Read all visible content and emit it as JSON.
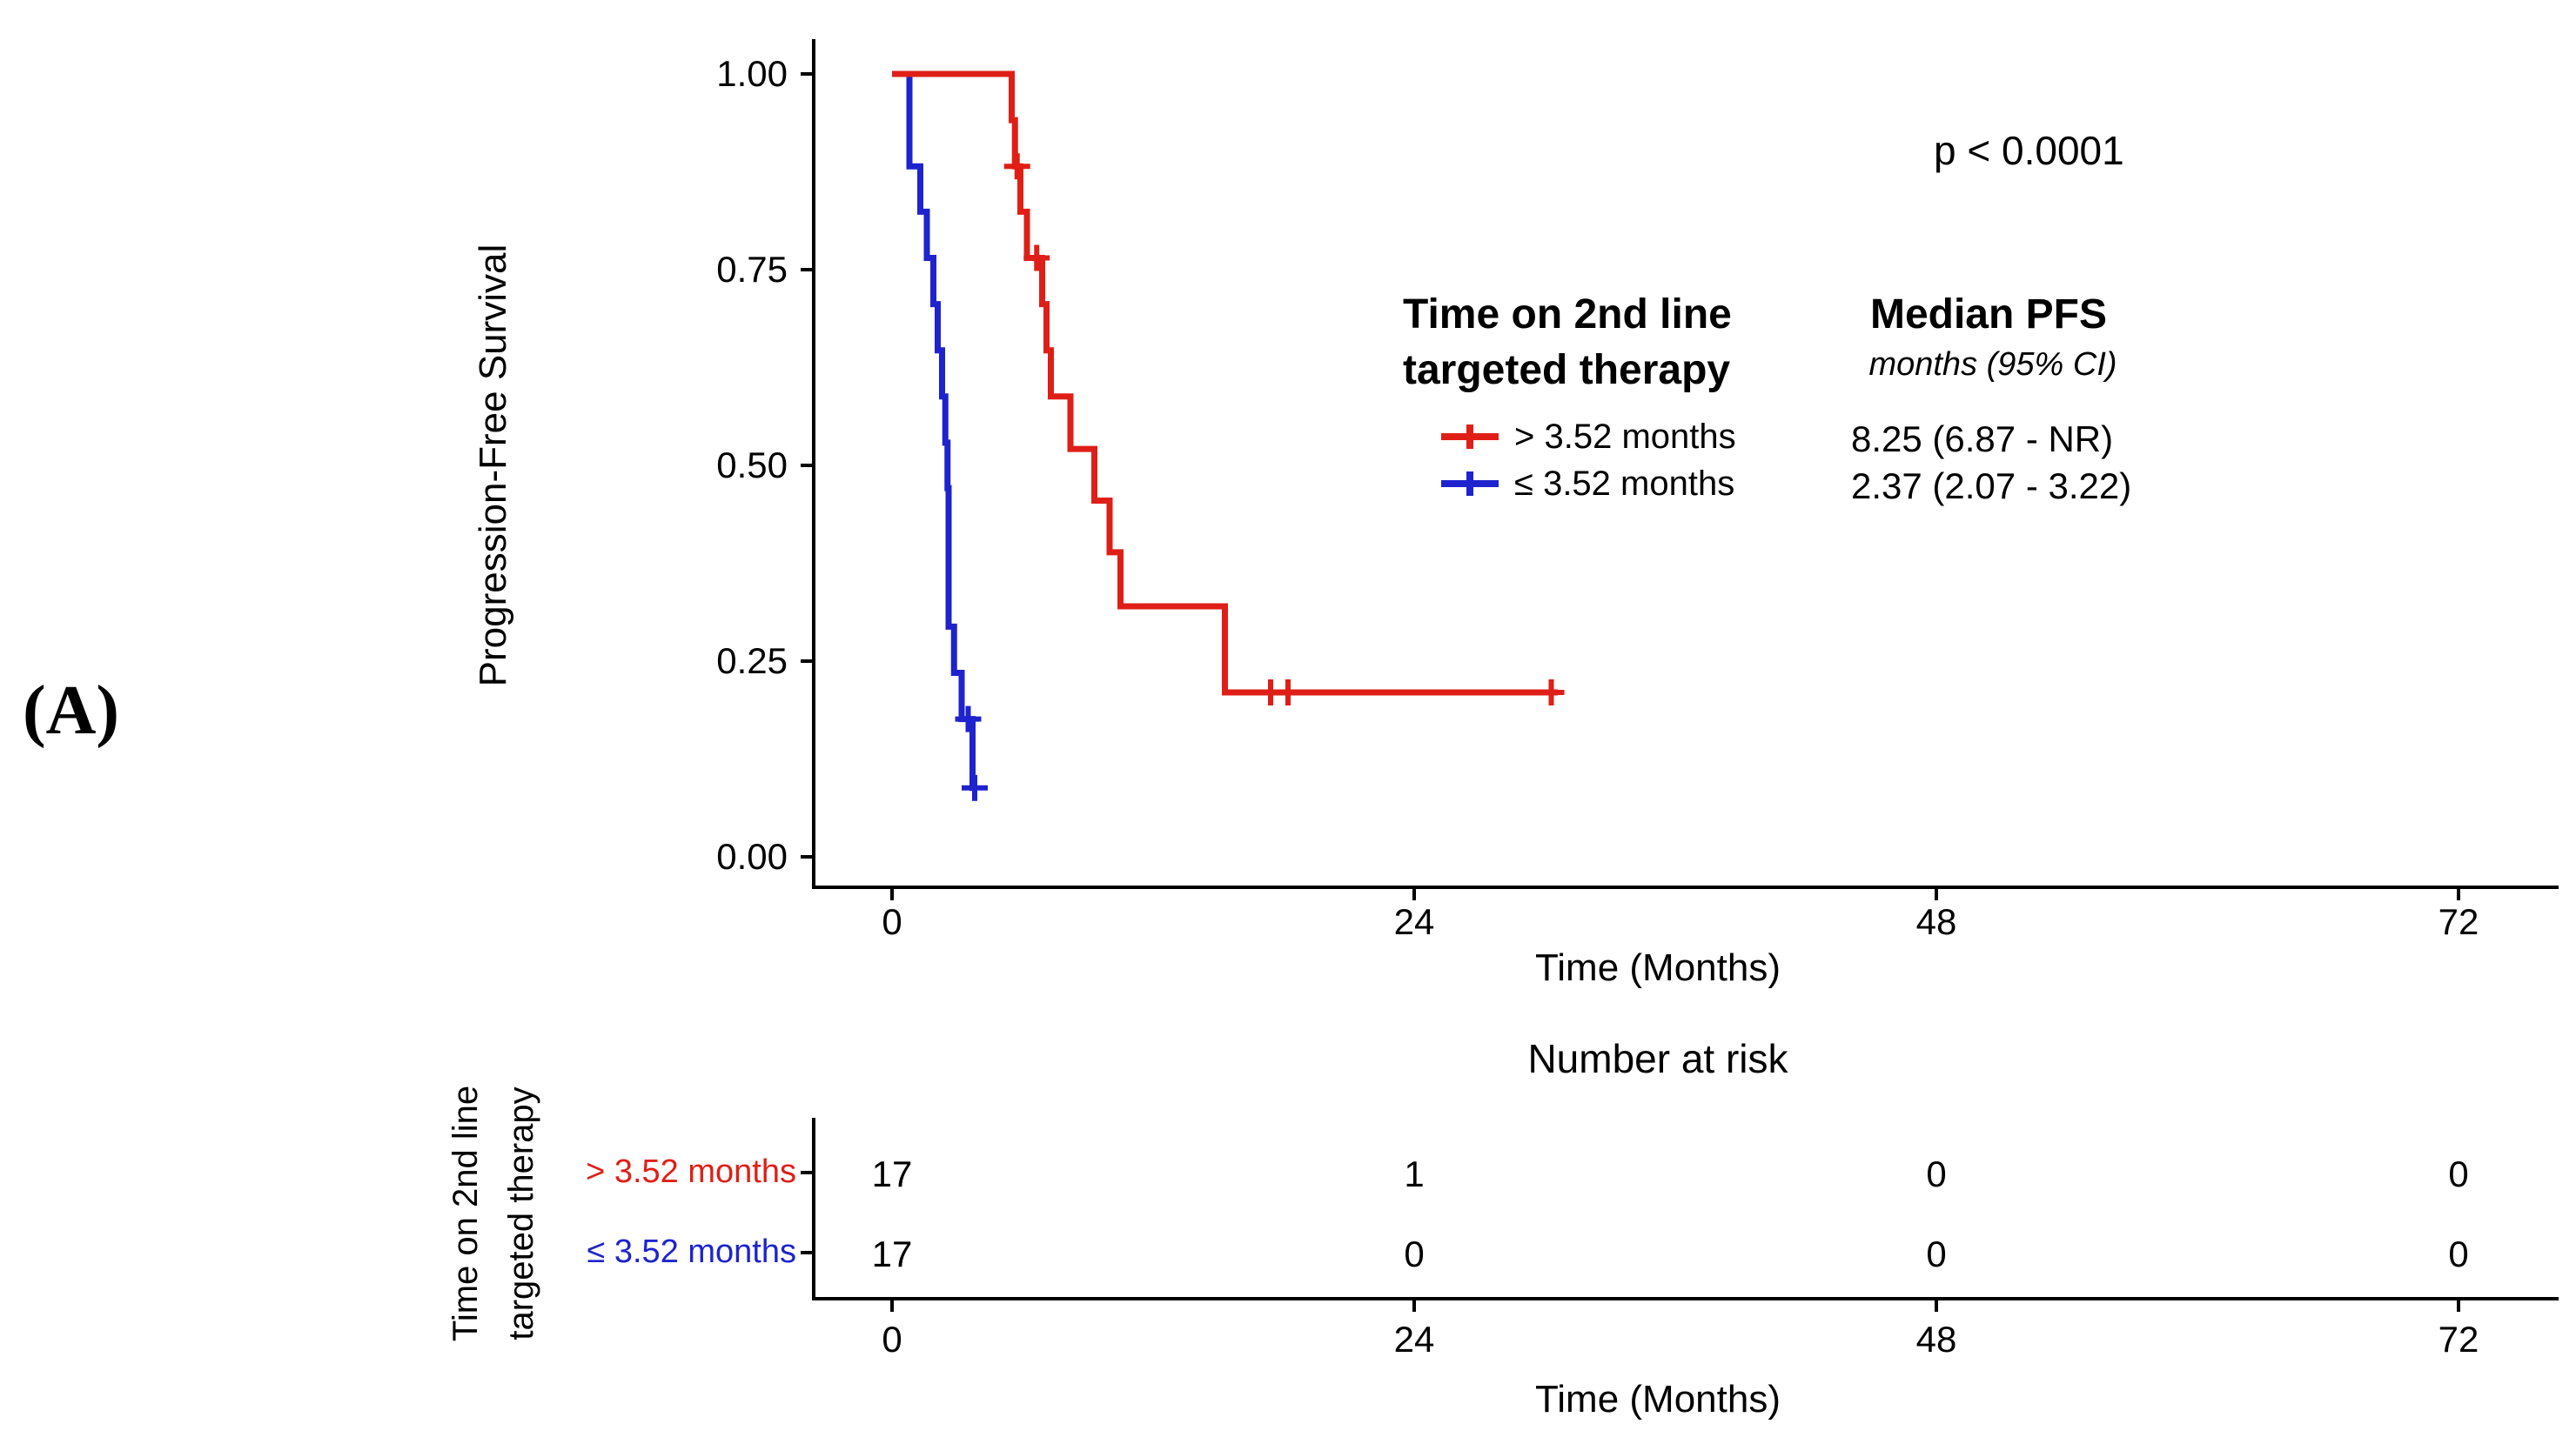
{
  "panel_label": "(A)",
  "annotations": {
    "p_value": "p < 0.0001"
  },
  "legend": {
    "group_header_lines": [
      "Time on 2nd line",
      "targeted therapy"
    ],
    "value_header": "Median PFS",
    "value_subheader": "months (95% CI)",
    "items": [
      {
        "label": "> 3.52 months",
        "median": "8.25 (6.87 - NR)",
        "color": "#df1f17"
      },
      {
        "label": "≤ 3.52 months",
        "median": "2.37 (2.07 - 3.22)",
        "color": "#1e23ce"
      }
    ]
  },
  "risk_table": {
    "title": "Number at risk",
    "axis_title_lines": [
      "Time on 2nd line",
      "targeted therapy"
    ],
    "rows": [
      {
        "label": "> 3.52 months",
        "color": "#df1f17",
        "values": [
          "17",
          "1",
          "0",
          "0"
        ]
      },
      {
        "label": "≤ 3.52 months",
        "color": "#1e23ce",
        "values": [
          "17",
          "0",
          "0",
          "0"
        ]
      }
    ],
    "xticks": [
      "0",
      "24",
      "48",
      "72"
    ],
    "xlabel": "Time (Months)"
  },
  "chart_data": {
    "type": "line",
    "subtype": "kaplan-meier-step",
    "title": "",
    "xlabel": "Time (Months)",
    "ylabel": "Progression-Free Survival",
    "xlim": [
      0,
      76
    ],
    "ylim": [
      0,
      1
    ],
    "grid": false,
    "legend_position": "right-center",
    "p_value": "p < 0.0001",
    "xticks": [
      {
        "label": "0",
        "value": 0
      },
      {
        "label": "24",
        "value": 24
      },
      {
        "label": "48",
        "value": 48
      },
      {
        "label": "72",
        "value": 72
      }
    ],
    "yticks": [
      {
        "label": "1.00",
        "value": 1.0
      },
      {
        "label": "0.75",
        "value": 0.75
      },
      {
        "label": "0.50",
        "value": 0.5
      },
      {
        "label": "0.25",
        "value": 0.25
      },
      {
        "label": "0.00",
        "value": 0.0
      }
    ],
    "series": [
      {
        "name": "> 3.52 months",
        "color": "#df1f17",
        "steps": [
          [
            0,
            1.0
          ],
          [
            5.5,
            0.941
          ],
          [
            5.65,
            0.882
          ],
          [
            5.9,
            0.824
          ],
          [
            6.2,
            0.765
          ],
          [
            6.9,
            0.706
          ],
          [
            7.1,
            0.647
          ],
          [
            7.3,
            0.588
          ],
          [
            8.2,
            0.521
          ],
          [
            9.3,
            0.455
          ],
          [
            10.0,
            0.389
          ],
          [
            10.5,
            0.32
          ],
          [
            15.3,
            0.21
          ]
        ],
        "end_time": 30.6,
        "censor_marks": [
          [
            5.75,
            0.882
          ],
          [
            6.65,
            0.765
          ],
          [
            17.4,
            0.21
          ],
          [
            18.2,
            0.21
          ],
          [
            30.3,
            0.21
          ]
        ],
        "median_pfs": "8.25 (6.87 - NR)",
        "number_at_risk": [
          17,
          1,
          0,
          0
        ]
      },
      {
        "name": "≤ 3.52 months",
        "color": "#1e23ce",
        "steps": [
          [
            0,
            1.0
          ],
          [
            0.8,
            0.882
          ],
          [
            1.3,
            0.824
          ],
          [
            1.6,
            0.765
          ],
          [
            1.9,
            0.706
          ],
          [
            2.1,
            0.647
          ],
          [
            2.3,
            0.588
          ],
          [
            2.45,
            0.529
          ],
          [
            2.55,
            0.471
          ],
          [
            2.6,
            0.294
          ],
          [
            2.85,
            0.235
          ],
          [
            3.2,
            0.176
          ],
          [
            3.7,
            0.088
          ]
        ],
        "end_time": 3.9,
        "censor_marks": [
          [
            3.5,
            0.176
          ],
          [
            3.8,
            0.088
          ]
        ],
        "median_pfs": "2.37 (2.07 - 3.22)",
        "number_at_risk": [
          17,
          0,
          0,
          0
        ]
      }
    ]
  }
}
